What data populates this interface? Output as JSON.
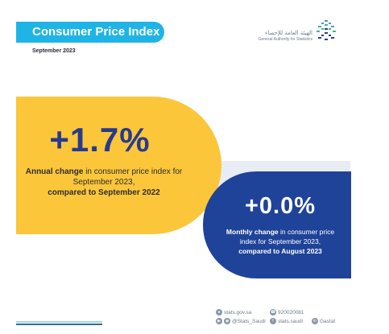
{
  "header": {
    "title": "Consumer Price Index",
    "date": "September 2023"
  },
  "logo": {
    "name_ar": "الهيئة العامة للإحصاء",
    "name_en": "General Authority for Statistics",
    "icon": "gastat-logo-icon"
  },
  "annual": {
    "value": "+1.7%",
    "desc_bold_1": "Annual change",
    "desc_normal": " in consumer price index for September 2023,",
    "desc_bold_2": "compared to September 2022"
  },
  "monthly": {
    "value": "+0.0%",
    "desc_bold_1": "Monthly change",
    "desc_normal": " in consumer price index for September 2023,",
    "desc_bold_2": "compared to August 2023"
  },
  "footer": {
    "website": "stats.gov.sa",
    "phone": "920020081",
    "social_handle": "@Stats_Saudi",
    "facebook": "stats.saudi",
    "linkedin": "Gastat"
  },
  "colors": {
    "title_pill": "#1fb4e6",
    "annual_card": "#fbc63a",
    "annual_value": "#273a8d",
    "monthly_card": "#1f4399",
    "band": "#e8ecf3"
  }
}
